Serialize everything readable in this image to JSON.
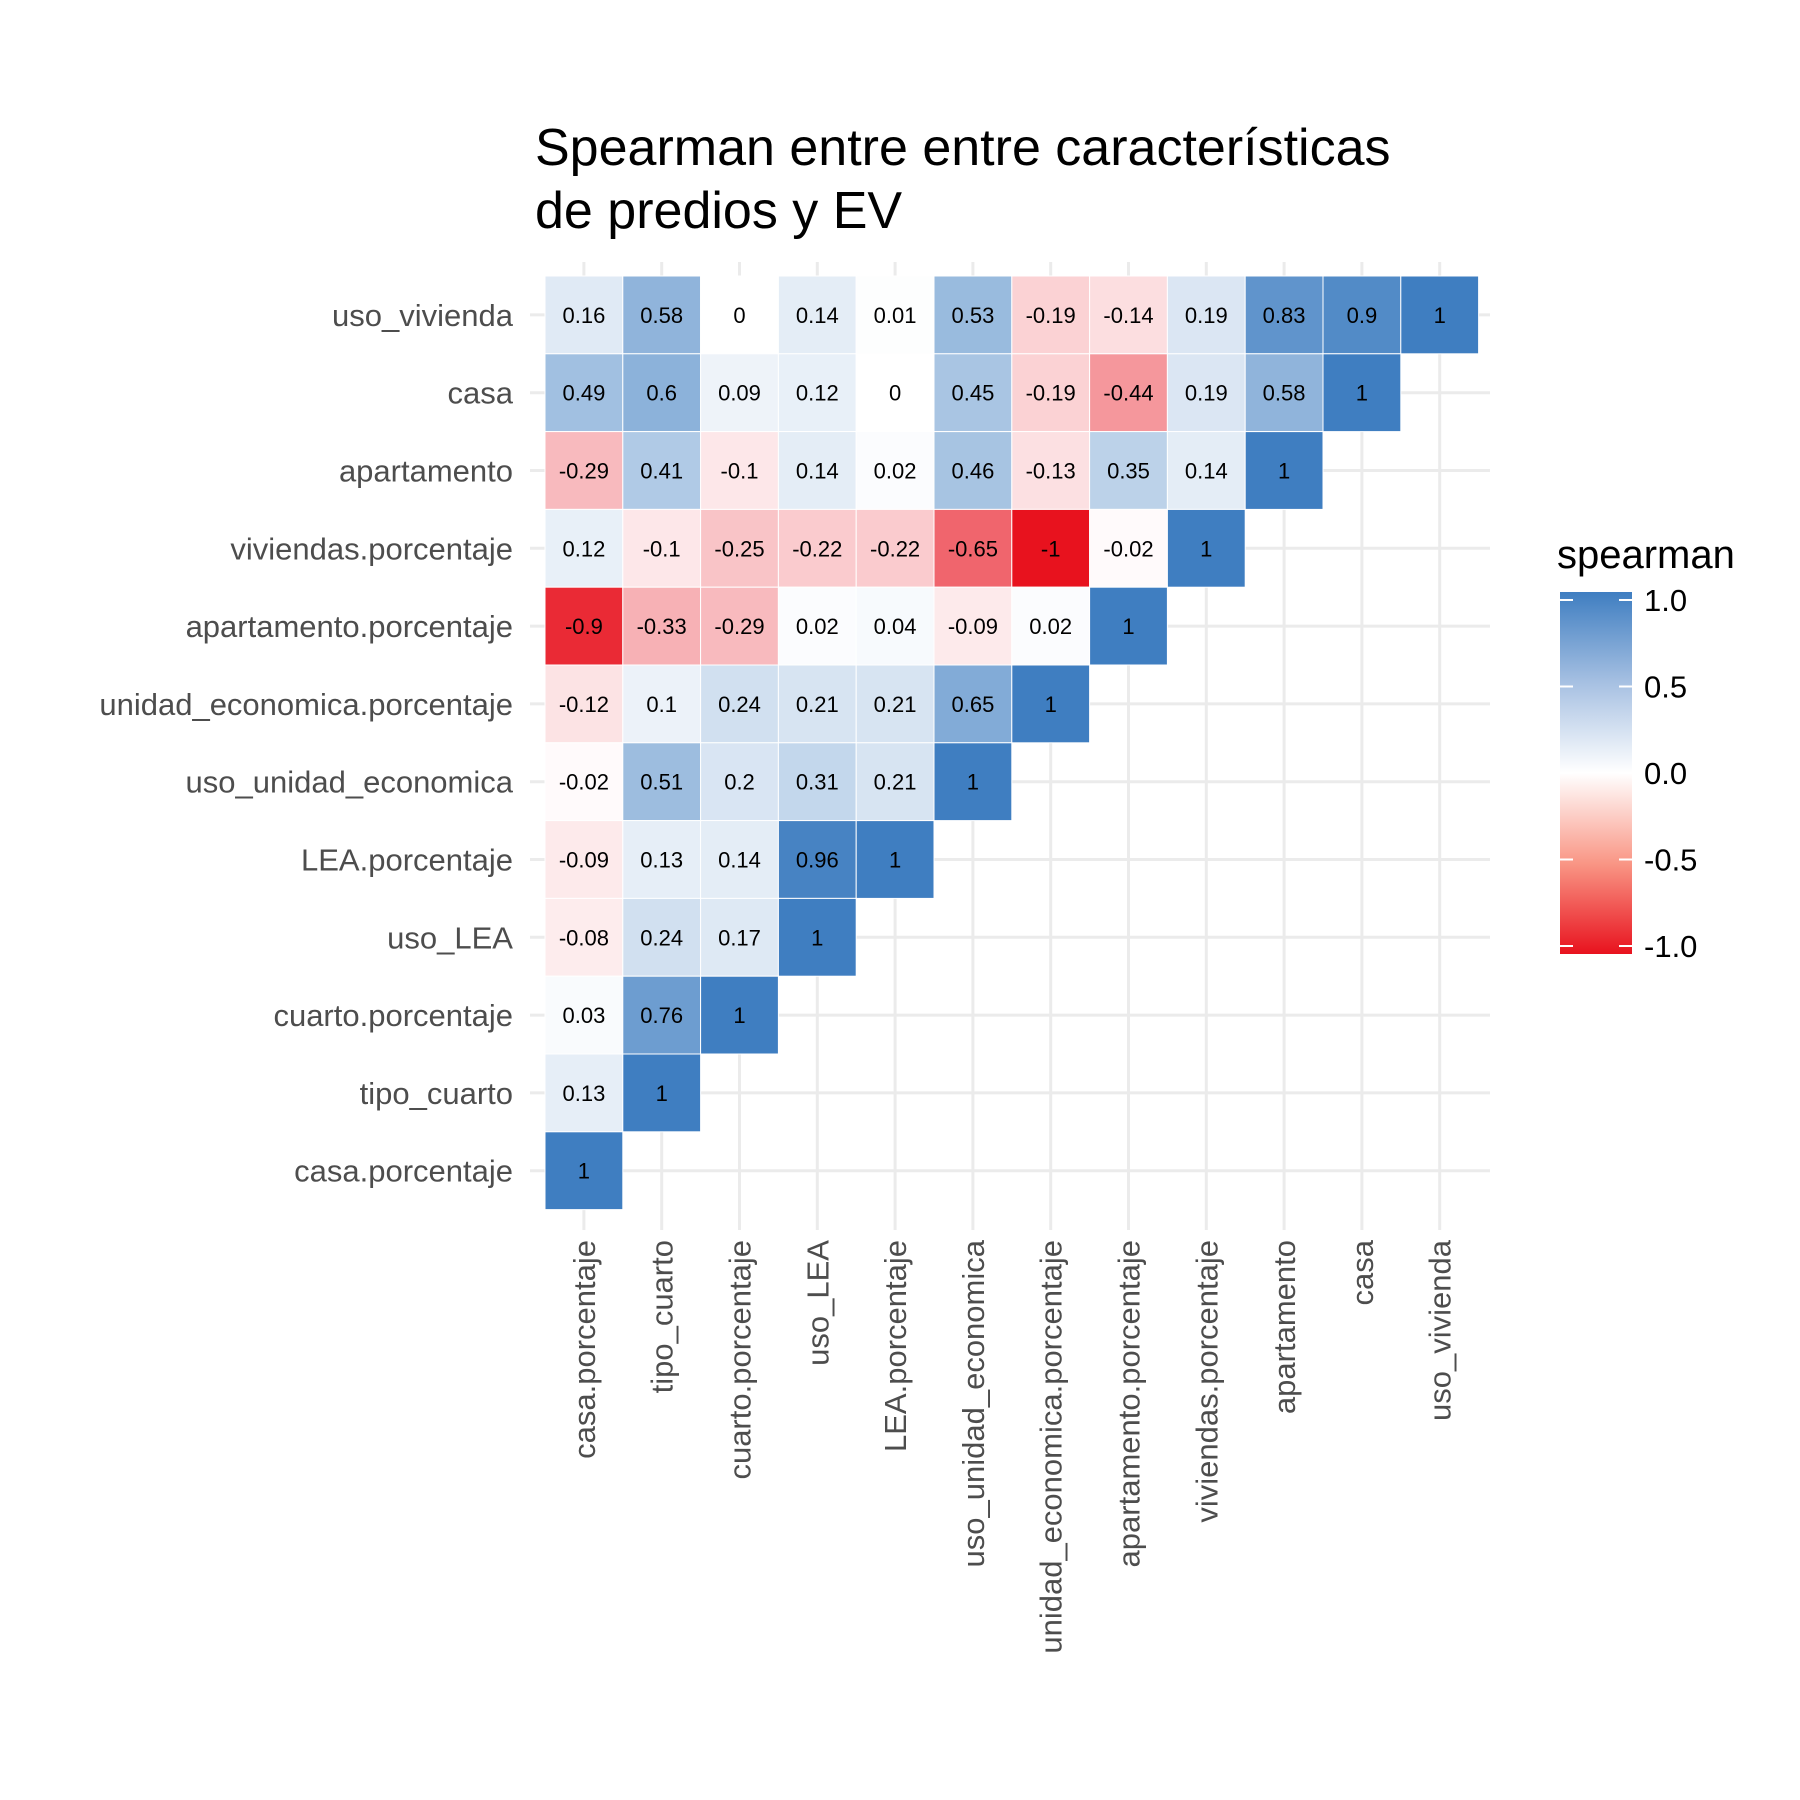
{
  "chart_data": {
    "type": "heatmap",
    "title": "Spearman entre entre características\nde predios y EV",
    "x_categories": [
      "casa.porcentaje",
      "tipo_cuarto",
      "cuarto.porcentaje",
      "uso_LEA",
      "LEA.porcentaje",
      "uso_unidad_economica",
      "unidad_economica.porcentaje",
      "apartamento.porcentaje",
      "viviendas.porcentaje",
      "apartamento",
      "casa",
      "uso_vivienda"
    ],
    "y_categories": [
      "uso_vivienda",
      "casa",
      "apartamento",
      "viviendas.porcentaje",
      "apartamento.porcentaje",
      "unidad_economica.porcentaje",
      "uso_unidad_economica",
      "LEA.porcentaje",
      "uso_LEA",
      "cuarto.porcentaje",
      "tipo_cuarto",
      "casa.porcentaje"
    ],
    "values": [
      [
        0.16,
        0.58,
        0,
        0.14,
        0.01,
        0.53,
        -0.19,
        -0.14,
        0.19,
        0.83,
        0.9,
        1
      ],
      [
        0.49,
        0.6,
        0.09,
        0.12,
        0,
        0.45,
        -0.19,
        -0.44,
        0.19,
        0.58,
        1,
        null
      ],
      [
        -0.29,
        0.41,
        -0.1,
        0.14,
        0.02,
        0.46,
        -0.13,
        0.35,
        0.14,
        1,
        null,
        null
      ],
      [
        0.12,
        -0.1,
        -0.25,
        -0.22,
        -0.22,
        -0.65,
        -1,
        -0.02,
        1,
        null,
        null,
        null
      ],
      [
        -0.9,
        -0.33,
        -0.29,
        0.02,
        0.04,
        -0.09,
        0.02,
        1,
        null,
        null,
        null,
        null
      ],
      [
        -0.12,
        0.1,
        0.24,
        0.21,
        0.21,
        0.65,
        1,
        null,
        null,
        null,
        null,
        null
      ],
      [
        -0.02,
        0.51,
        0.2,
        0.31,
        0.21,
        1,
        null,
        null,
        null,
        null,
        null,
        null
      ],
      [
        -0.09,
        0.13,
        0.14,
        0.96,
        1,
        null,
        null,
        null,
        null,
        null,
        null,
        null
      ],
      [
        -0.08,
        0.24,
        0.17,
        1,
        null,
        null,
        null,
        null,
        null,
        null,
        null,
        null
      ],
      [
        0.03,
        0.76,
        1,
        null,
        null,
        null,
        null,
        null,
        null,
        null,
        null,
        null
      ],
      [
        0.13,
        1,
        null,
        null,
        null,
        null,
        null,
        null,
        null,
        null,
        null,
        null
      ],
      [
        1,
        null,
        null,
        null,
        null,
        null,
        null,
        null,
        null,
        null,
        null,
        null
      ]
    ],
    "legend": {
      "title": "spearman",
      "ticks": [
        1.0,
        0.5,
        0.0,
        -0.5,
        -1.0
      ],
      "tick_labels": [
        "1.0",
        "0.5",
        "0.0",
        "-0.5",
        "-1.0"
      ],
      "placement": "right"
    },
    "color_scale": {
      "low": "#e8121e",
      "mid": "#ffffff",
      "high": "#3f7ec1",
      "limits": [
        -1,
        1
      ]
    },
    "grid": true
  }
}
